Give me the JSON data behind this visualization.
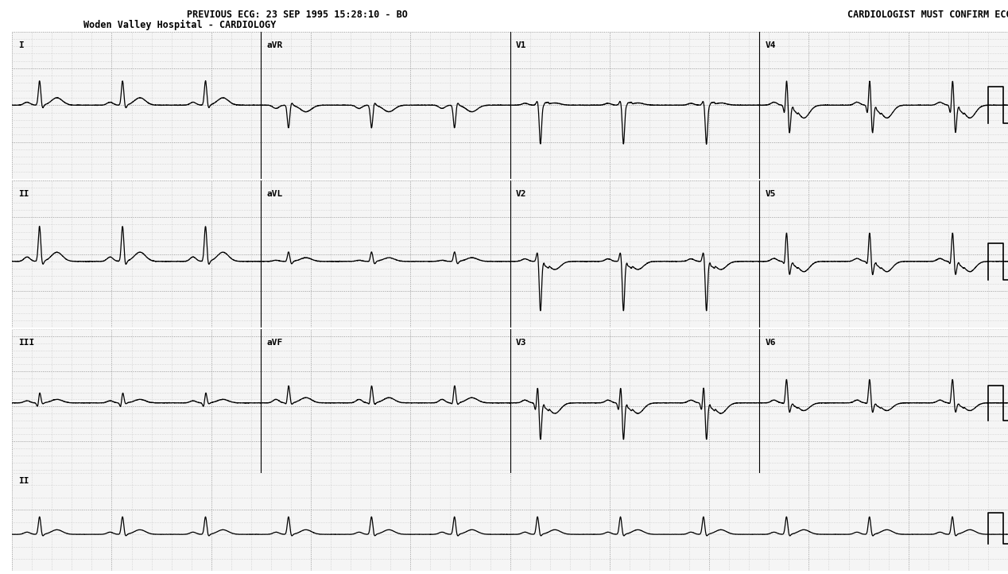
{
  "title_line1": "PREVIOUS ECG: 23 SEP 1995 15:28:10 - BO",
  "title_line2": "Woden Valley Hospital - CARDIOLOGY",
  "top_right_text": "CARDIOLOGIST MUST CONFIRM ECG",
  "bg_color": "#ffffff",
  "ecg_color": "#000000",
  "grid_dot_color": "#aaaaaa",
  "fig_width": 12.68,
  "fig_height": 7.22,
  "leads_row1": [
    "I",
    "aVR",
    "V1",
    "V4"
  ],
  "leads_row2": [
    "II",
    "aVL",
    "V2",
    "V5"
  ],
  "leads_row3": [
    "III",
    "aVF",
    "V3",
    "V6"
  ],
  "lead_row4": "II",
  "heart_rate": 72,
  "ecg_fs": 500
}
